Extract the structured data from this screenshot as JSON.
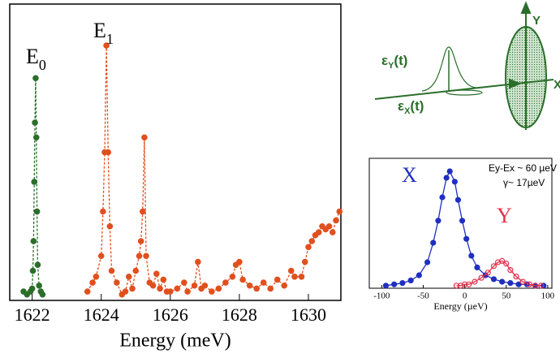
{
  "chart_data": [
    {
      "type": "line",
      "xlabel": "Energy (meV)",
      "xlim": [
        1621.35,
        1630.94
      ],
      "xticks": [
        1622,
        1624,
        1626,
        1628,
        1630
      ],
      "ylim": [
        0,
        100
      ],
      "annotations": [
        {
          "text": "E",
          "subscript": "0"
        },
        {
          "text": "E",
          "subscript": "1"
        }
      ],
      "series": [
        {
          "color": "#2a6e2a",
          "marker": "filled",
          "x": [
            1621.75,
            1621.85,
            1621.95,
            1622.0,
            1622.02,
            1622.04,
            1622.06,
            1622.08,
            1622.1,
            1622.12,
            1622.14,
            1622.16,
            1622.2,
            1622.25,
            1622.3
          ],
          "values": [
            3,
            2,
            3,
            4,
            10,
            20,
            40,
            60,
            75,
            55,
            30,
            12,
            5,
            3,
            2
          ]
        },
        {
          "color": "#e0501e",
          "marker": "filled",
          "x": [
            1623.6,
            1623.75,
            1623.85,
            1624.0,
            1624.05,
            1624.1,
            1624.15,
            1624.2,
            1624.25,
            1624.3,
            1624.45,
            1624.6,
            1624.7,
            1624.8,
            1624.9,
            1625.0,
            1625.1,
            1625.15,
            1625.2,
            1625.25,
            1625.3,
            1625.4,
            1625.5,
            1625.6,
            1625.7,
            1625.8,
            1625.9,
            1626.0,
            1626.2,
            1626.4,
            1626.5,
            1626.7,
            1626.8,
            1626.9,
            1627.0,
            1627.2,
            1627.4,
            1627.6,
            1627.8,
            1627.9,
            1628.0,
            1628.1,
            1628.3,
            1628.5,
            1628.7,
            1628.9,
            1629.1,
            1629.3,
            1629.5,
            1629.6,
            1629.8,
            1629.9,
            1630.0,
            1630.1,
            1630.2,
            1630.3,
            1630.4,
            1630.5,
            1630.6,
            1630.7,
            1630.8,
            1630.9
          ],
          "values": [
            3,
            6,
            8,
            15,
            30,
            50,
            86,
            50,
            25,
            10,
            6,
            2,
            3,
            8,
            4,
            10,
            15,
            20,
            30,
            55,
            15,
            6,
            5,
            9,
            4,
            7,
            3,
            3,
            4,
            6,
            3,
            5,
            13,
            4,
            5,
            3,
            4,
            6,
            8,
            12,
            13,
            7,
            5,
            4,
            6,
            4,
            7,
            5,
            10,
            8,
            8,
            13,
            18,
            20,
            22,
            23,
            25,
            24,
            25,
            23,
            27,
            30
          ]
        }
      ]
    },
    {
      "type": "line",
      "xlabel": "Energy (µeV)",
      "annotation": "Ey-Ex ~ 60 µeV",
      "annotation2": "γ~ 17µeV",
      "xlim": [
        -115,
        105
      ],
      "xticks": [
        -100,
        -50,
        0,
        50,
        100
      ],
      "ylim": [
        0,
        1
      ],
      "series": [
        {
          "name": "X",
          "color": "#1f2fbf",
          "marker": "filled",
          "x": [
            -95,
            -85,
            -75,
            -65,
            -55,
            -45,
            -38,
            -32,
            -27,
            -22,
            -18,
            -12,
            -8,
            -3,
            2,
            8,
            15,
            25,
            35,
            45,
            55,
            65,
            75,
            85,
            95
          ],
          "values": [
            0.02,
            0.03,
            0.04,
            0.06,
            0.1,
            0.2,
            0.35,
            0.52,
            0.7,
            0.85,
            0.9,
            0.82,
            0.68,
            0.52,
            0.38,
            0.25,
            0.16,
            0.1,
            0.07,
            0.05,
            0.04,
            0.03,
            0.03,
            0.02,
            0.02
          ]
        },
        {
          "name": "Y",
          "color": "#e0304a",
          "marker": "open",
          "x": [
            -10,
            -5,
            0,
            5,
            12,
            20,
            28,
            35,
            40,
            45,
            50,
            55,
            62,
            70,
            78,
            85,
            92
          ],
          "values": [
            0.02,
            0.02,
            0.03,
            0.03,
            0.05,
            0.08,
            0.12,
            0.17,
            0.2,
            0.21,
            0.19,
            0.14,
            0.09,
            0.05,
            0.03,
            0.02,
            0.02
          ]
        }
      ]
    }
  ],
  "diagram": {
    "labels": [
      {
        "text": "ε",
        "subscript": "Y",
        "suffix": "(t)"
      },
      {
        "text": "ε",
        "subscript": "X",
        "suffix": "(t)"
      },
      {
        "text": "Y"
      },
      {
        "text": "X"
      }
    ]
  }
}
